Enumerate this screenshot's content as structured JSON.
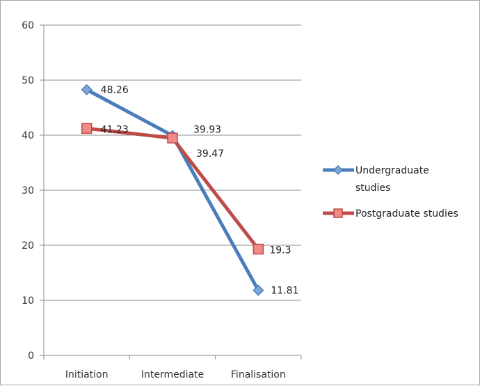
{
  "chart_data": {
    "type": "line",
    "title": "",
    "xlabel": "",
    "ylabel": "",
    "categories": [
      "Initiation",
      "Intermediate",
      "Finalisation"
    ],
    "ylim": [
      0,
      60
    ],
    "yticks": [
      0,
      10,
      20,
      30,
      40,
      50,
      60
    ],
    "grid": true,
    "legend_position": "right",
    "series": [
      {
        "name": "Undergraduate studies",
        "legend_lines": [
          "Undergraduate",
          "studies"
        ],
        "values": [
          48.26,
          39.93,
          11.81
        ],
        "labels": [
          "48.26",
          "39.93",
          "11.81"
        ],
        "color": "#4a7ebb",
        "marker": "diamond"
      },
      {
        "name": "Postgraduate studies",
        "legend_lines": [
          "Postgraduate studies"
        ],
        "values": [
          41.23,
          39.47,
          19.3
        ],
        "labels": [
          "41.23",
          "39.47",
          "19.3"
        ],
        "color": "#be4b48",
        "marker": "square"
      }
    ]
  }
}
